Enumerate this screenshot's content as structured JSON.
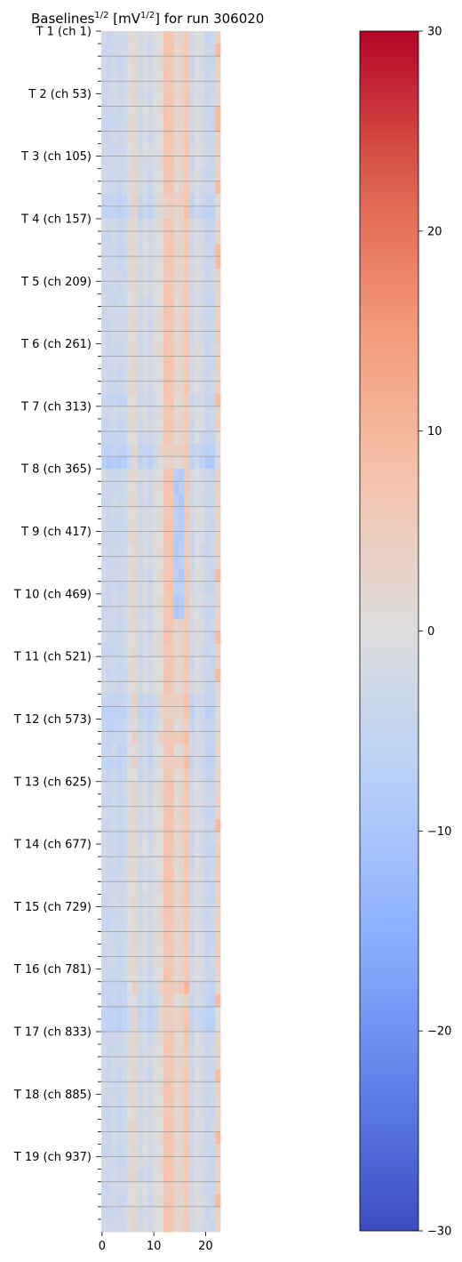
{
  "chart_data": {
    "type": "heatmap",
    "title": {
      "prefix": "Baselines",
      "prefix_sup": "1/2",
      "unit_open": " [mV",
      "unit_sup": "1/2",
      "unit_close": "] for run 306020"
    },
    "xlabel": "",
    "ylabel": "",
    "n_columns": 23,
    "n_rows": 96,
    "x_ticks": [
      0,
      10,
      20
    ],
    "x_tick_labels": [
      "0",
      "10",
      "20"
    ],
    "y_ticks": [
      {
        "row": 0,
        "label": "T 1 (ch 1)"
      },
      {
        "row": 5,
        "label": "T 2 (ch 53)"
      },
      {
        "row": 10,
        "label": "T 3 (ch 105)"
      },
      {
        "row": 15,
        "label": "T 4 (ch 157)"
      },
      {
        "row": 20,
        "label": "T 5 (ch 209)"
      },
      {
        "row": 25,
        "label": "T 6 (ch 261)"
      },
      {
        "row": 30,
        "label": "T 7 (ch 313)"
      },
      {
        "row": 35,
        "label": "T 8 (ch 365)"
      },
      {
        "row": 40,
        "label": "T 9 (ch 417)"
      },
      {
        "row": 45,
        "label": "T 10 (ch 469)"
      },
      {
        "row": 50,
        "label": "T 11 (ch 521)"
      },
      {
        "row": 55,
        "label": "T 12 (ch 573)"
      },
      {
        "row": 60,
        "label": "T 13 (ch 625)"
      },
      {
        "row": 65,
        "label": "T 14 (ch 677)"
      },
      {
        "row": 70,
        "label": "T 15 (ch 729)"
      },
      {
        "row": 75,
        "label": "T 16 (ch 781)"
      },
      {
        "row": 80,
        "label": "T 17 (ch 833)"
      },
      {
        "row": 85,
        "label": "T 18 (ch 885)"
      },
      {
        "row": 90,
        "label": "T 19 (ch 937)"
      }
    ],
    "colorbar": {
      "colormap": "coolwarm",
      "vmin": -30,
      "vmax": 30,
      "ticks": [
        -30,
        -20,
        -10,
        0,
        10,
        20,
        30
      ],
      "tick_labels": [
        "−30",
        "−20",
        "−10",
        "0",
        "10",
        "20",
        "30"
      ]
    },
    "column_profile": [
      -3,
      -4,
      -3,
      -4,
      -3,
      1,
      2,
      -3,
      -1,
      -3,
      0,
      1,
      7,
      7,
      2,
      3,
      6,
      -3,
      0,
      -2,
      -4,
      -4,
      3
    ],
    "row_offsets": [
      0,
      0,
      0,
      0,
      0,
      0,
      0,
      0,
      0,
      0,
      0,
      0,
      0,
      -2,
      -3,
      0,
      0,
      0,
      0,
      0,
      0,
      0,
      0,
      0,
      0,
      0,
      0,
      0,
      0,
      -1,
      0,
      0,
      -1,
      -3,
      -4,
      0,
      0,
      0,
      0,
      0,
      0,
      0,
      0,
      0,
      0,
      0,
      0,
      0,
      0,
      0,
      0,
      0,
      0,
      -2,
      -3,
      -2,
      -1,
      -1,
      -2,
      -1,
      0,
      0,
      0,
      0,
      0,
      0,
      0,
      0,
      0,
      0,
      0,
      0,
      0,
      0,
      0,
      0,
      -1,
      -2,
      -3,
      -3,
      0,
      0,
      0,
      0,
      0,
      0,
      0,
      0,
      0,
      0,
      0,
      0,
      0,
      0,
      0,
      0
    ],
    "hot_rows": [
      13,
      14,
      33,
      34,
      53,
      54,
      56,
      58,
      76,
      78,
      79
    ],
    "blue_patch": {
      "columns": [
        14,
        15
      ],
      "rows": [
        35,
        46
      ],
      "value": -8
    },
    "edge_hot_column": 22,
    "edge_hot_rows": [
      1,
      6,
      7,
      12,
      17,
      18,
      29,
      43,
      48,
      51,
      63,
      77,
      83,
      88,
      93
    ],
    "grid_lines": "horizontal",
    "legend": "colorbar-right"
  }
}
